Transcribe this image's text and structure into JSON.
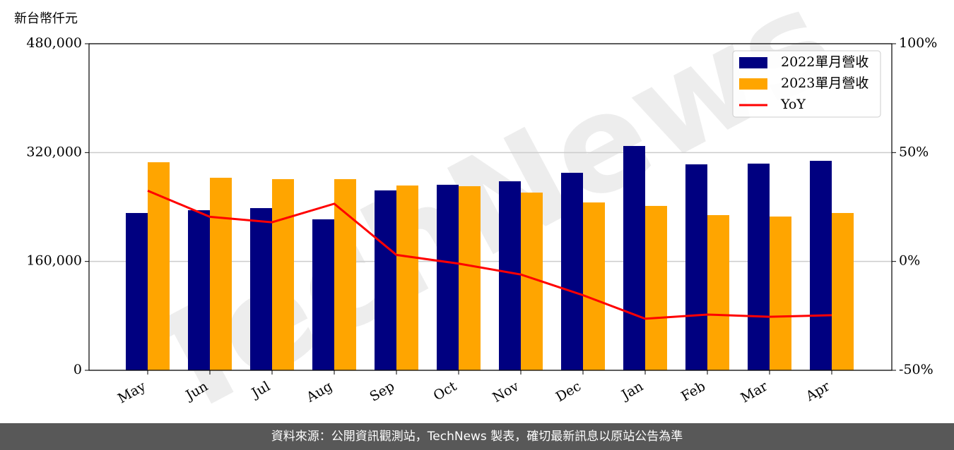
{
  "chart_data": {
    "type": "bar",
    "y_label": "新台幣仟元",
    "watermark": "TechNews",
    "footer": "資料來源：公開資訊觀測站，TechNews 製表，確切最新訊息以原站公告為準",
    "categories": [
      "May",
      "Jun",
      "Jul",
      "Aug",
      "Sep",
      "Oct",
      "Nov",
      "Dec",
      "Jan",
      "Feb",
      "Mar",
      "Apr"
    ],
    "series": [
      {
        "name": "2022單月營收",
        "type": "bar",
        "color": "#000080",
        "values": [
          231200,
          235300,
          238400,
          221900,
          264400,
          272700,
          277800,
          290300,
          329700,
          302700,
          303800,
          307900
        ]
      },
      {
        "name": "2023單月營收",
        "type": "bar",
        "color": "#ffa500",
        "values": [
          305800,
          283000,
          281000,
          281000,
          271600,
          270600,
          261200,
          246700,
          241600,
          228100,
          226000,
          231200
        ]
      },
      {
        "name": "YoY",
        "type": "line",
        "axis": "y2",
        "color": "#ff0000",
        "values": [
          32.5,
          20.5,
          18,
          26.5,
          3,
          -1,
          -6,
          -15.5,
          -26.3,
          -24.4,
          -25.4,
          -24.7
        ]
      }
    ],
    "ylim": [
      0,
      480000
    ],
    "yticks": [
      0,
      {
        "value": 160000,
        "label": "160,000"
      },
      {
        "value": 320000,
        "label": "320,000"
      },
      {
        "value": 480000,
        "label": "480,000"
      }
    ],
    "y2lim": [
      -50,
      100
    ],
    "y2ticks": [
      {
        "value": -50,
        "label": "-50%"
      },
      {
        "value": 0,
        "label": "0%"
      },
      {
        "value": 50,
        "label": "50%"
      },
      {
        "value": 100,
        "label": "100%"
      }
    ],
    "grid": true,
    "legend": "upper right"
  }
}
